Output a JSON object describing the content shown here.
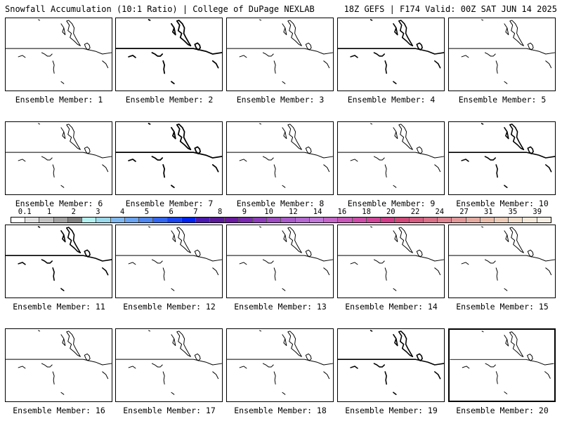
{
  "header": {
    "title": "Snowfall Accumulation (10:1 Ratio) | College of DuPage NEXLAB",
    "run_info": "18Z GEFS | F174 Valid: 00Z SAT JUN 14 2025"
  },
  "members": [
    {
      "label": "Ensemble Member: 1"
    },
    {
      "label": "Ensemble Member: 2"
    },
    {
      "label": "Ensemble Member: 3"
    },
    {
      "label": "Ensemble Member: 4"
    },
    {
      "label": "Ensemble Member: 5"
    },
    {
      "label": "Ensemble Member: 6"
    },
    {
      "label": "Ensemble Member: 7"
    },
    {
      "label": "Ensemble Member: 8"
    },
    {
      "label": "Ensemble Member: 9"
    },
    {
      "label": "Ensemble Member: 10"
    },
    {
      "label": "Ensemble Member: 11"
    },
    {
      "label": "Ensemble Member: 12"
    },
    {
      "label": "Ensemble Member: 13"
    },
    {
      "label": "Ensemble Member: 14"
    },
    {
      "label": "Ensemble Member: 15"
    },
    {
      "label": "Ensemble Member: 16"
    },
    {
      "label": "Ensemble Member: 17"
    },
    {
      "label": "Ensemble Member: 18"
    },
    {
      "label": "Ensemble Member: 19"
    },
    {
      "label": "Ensemble Member: 20"
    }
  ],
  "color_scale": {
    "tick_labels": [
      "0.1",
      "1",
      "2",
      "3",
      "4",
      "5",
      "6",
      "7",
      "8",
      "9",
      "10",
      "12",
      "14",
      "16",
      "18",
      "20",
      "22",
      "24",
      "27",
      "31",
      "35",
      "39"
    ],
    "colors": [
      "#ffffff",
      "#e0e0e0",
      "#c2c2c2",
      "#a2a2a2",
      "#808080",
      "#b3f0f0",
      "#99d9ea",
      "#7fb8f0",
      "#6aa3f0",
      "#4f86f0",
      "#3366f0",
      "#1a44f0",
      "#0022f0",
      "#4a1ab0",
      "#5a1a9a",
      "#6a1aa0",
      "#7a28b0",
      "#8c3cb8",
      "#9c4cc0",
      "#a85ac8",
      "#b468d0",
      "#c078d8",
      "#c466c8",
      "#c858b8",
      "#cc4ca8",
      "#d04498",
      "#d03c88",
      "#d04878",
      "#d45c80",
      "#d87088",
      "#dc8490",
      "#e09898",
      "#e4aaa0",
      "#e8bcaa",
      "#ecccb8",
      "#f0dcc8",
      "#f4e8d8",
      "#f8efe4"
    ]
  }
}
